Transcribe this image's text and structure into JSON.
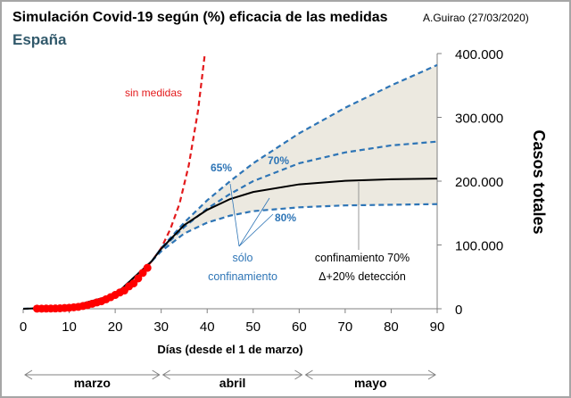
{
  "chart_data": {
    "type": "line",
    "title": "Simulación Covid-19 según (%) eficacia de las medidas",
    "subtitle": "España",
    "credit": "A.Guirao (27/03/2020)",
    "xlabel": "Días (desde el 1 de marzo)",
    "ylabel": "Casos totales",
    "xlim": [
      0,
      90
    ],
    "ylim": [
      0,
      400000
    ],
    "x_ticks": [
      "0",
      "10",
      "20",
      "30",
      "40",
      "50",
      "60",
      "70",
      "80",
      "90"
    ],
    "y_ticks": [
      "0",
      "100.000",
      "200.000",
      "300.000",
      "400.000"
    ],
    "y_axis_side": "right",
    "grid": false,
    "observed": {
      "color": "#ff0000",
      "x": [
        3,
        4,
        5,
        6,
        7,
        8,
        9,
        10,
        11,
        12,
        13,
        14,
        15,
        16,
        17,
        18,
        19,
        20,
        21,
        22,
        23,
        24,
        25,
        26,
        27
      ],
      "y": [
        200,
        250,
        300,
        400,
        500,
        700,
        1200,
        1600,
        2300,
        3000,
        4300,
        5800,
        7800,
        9900,
        11800,
        14800,
        18100,
        21600,
        25500,
        28600,
        35100,
        39700,
        47600,
        56200,
        64100
      ]
    },
    "series": [
      {
        "name": "sin medidas",
        "color": "#e31a1c",
        "style": "dashed",
        "x": [
          20,
          24,
          28,
          30,
          32,
          34,
          36,
          38,
          39.5
        ],
        "y": [
          22000,
          40000,
          75000,
          95000,
          125000,
          165000,
          225000,
          310000,
          400000
        ]
      },
      {
        "name": "65%",
        "color": "#2e75b6",
        "style": "dashed",
        "x": [
          0,
          10,
          20,
          28,
          30,
          35,
          40,
          45,
          50,
          60,
          70,
          80,
          90
        ],
        "y": [
          0,
          2500,
          22000,
          75000,
          95000,
          135000,
          170000,
          200000,
          228000,
          275000,
          315000,
          350000,
          382000
        ]
      },
      {
        "name": "70%",
        "color": "#2e75b6",
        "style": "dashed",
        "x": [
          28,
          30,
          35,
          40,
          45,
          50,
          60,
          70,
          80,
          90
        ],
        "y": [
          75000,
          93000,
          128000,
          157000,
          180000,
          200000,
          228000,
          245000,
          256000,
          262000
        ]
      },
      {
        "name": "80%",
        "color": "#2e75b6",
        "style": "dashed",
        "x": [
          28,
          30,
          35,
          40,
          45,
          50,
          60,
          70,
          80,
          90
        ],
        "y": [
          75000,
          90000,
          118000,
          135000,
          146000,
          153000,
          159000,
          162000,
          163000,
          164000
        ]
      },
      {
        "name": "confinamiento 70% Δ+20% detección",
        "color": "#000000",
        "style": "solid",
        "x": [
          0,
          10,
          20,
          28,
          30,
          35,
          40,
          45,
          50,
          60,
          70,
          80,
          90
        ],
        "y": [
          0,
          2500,
          22000,
          75000,
          94000,
          131000,
          155000,
          172000,
          183000,
          195000,
          200500,
          203000,
          204000
        ]
      }
    ],
    "shaded_band": {
      "between": [
        "65%",
        "80%"
      ],
      "color": "#ece9e0"
    },
    "annotations": {
      "sin_medidas": "sin medidas",
      "p65": "65%",
      "p70": "70%",
      "p80": "80%",
      "solo_conf_1": "sólo",
      "solo_conf_2": "confinamiento",
      "conf_1": "confinamiento 70%",
      "conf_2": "Δ+20%  detección"
    },
    "months": [
      "marzo",
      "abril",
      "mayo"
    ]
  }
}
